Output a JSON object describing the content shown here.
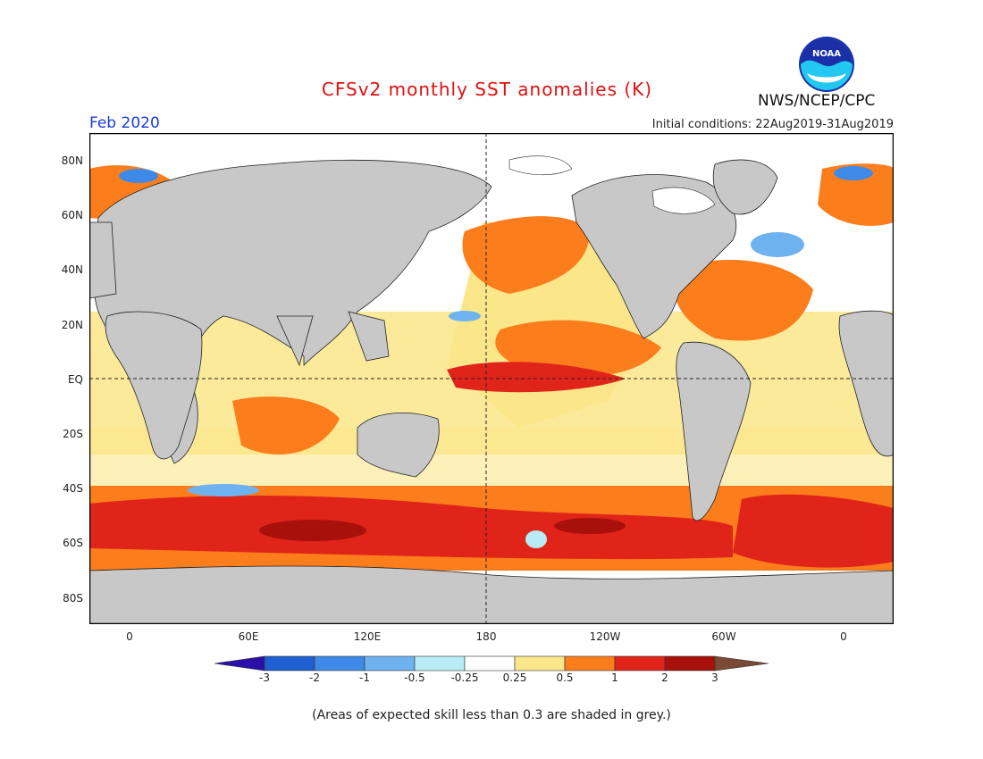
{
  "header": {
    "title": "CFSv2 monthly SST anomalies (K)",
    "agency": "NWS/NCEP/CPC",
    "logo_text": "NOAA",
    "month": "Feb 2020",
    "initial_conditions": "Initial conditions: 22Aug2019-31Aug2019"
  },
  "axes": {
    "lat_labels": [
      "80N",
      "60N",
      "40N",
      "20N",
      "EQ",
      "20S",
      "40S",
      "60S",
      "80S"
    ],
    "lon_labels": [
      "0",
      "60E",
      "120E",
      "180",
      "120W",
      "60W",
      "0"
    ]
  },
  "colorbar": {
    "labels": [
      "-3",
      "-2",
      "-1",
      "-0.5",
      "-0.25",
      "0.25",
      "0.5",
      "1",
      "2",
      "3"
    ],
    "colors": [
      "#2a0fa8",
      "#1e5fd2",
      "#3d8ae8",
      "#6fb2f0",
      "#b8ecf5",
      "#ffffff",
      "#fbe68a",
      "#fc7d1c",
      "#e0241a",
      "#a8100c",
      "#7a4a35"
    ]
  },
  "footer": {
    "note": "(Areas of expected skill less than 0.3 are shaded in grey.)"
  },
  "colors": {
    "title": "#e01010",
    "month": "#1a3cdc",
    "land": "#c8c8c8",
    "skill_grey": "#c8c8c8"
  }
}
